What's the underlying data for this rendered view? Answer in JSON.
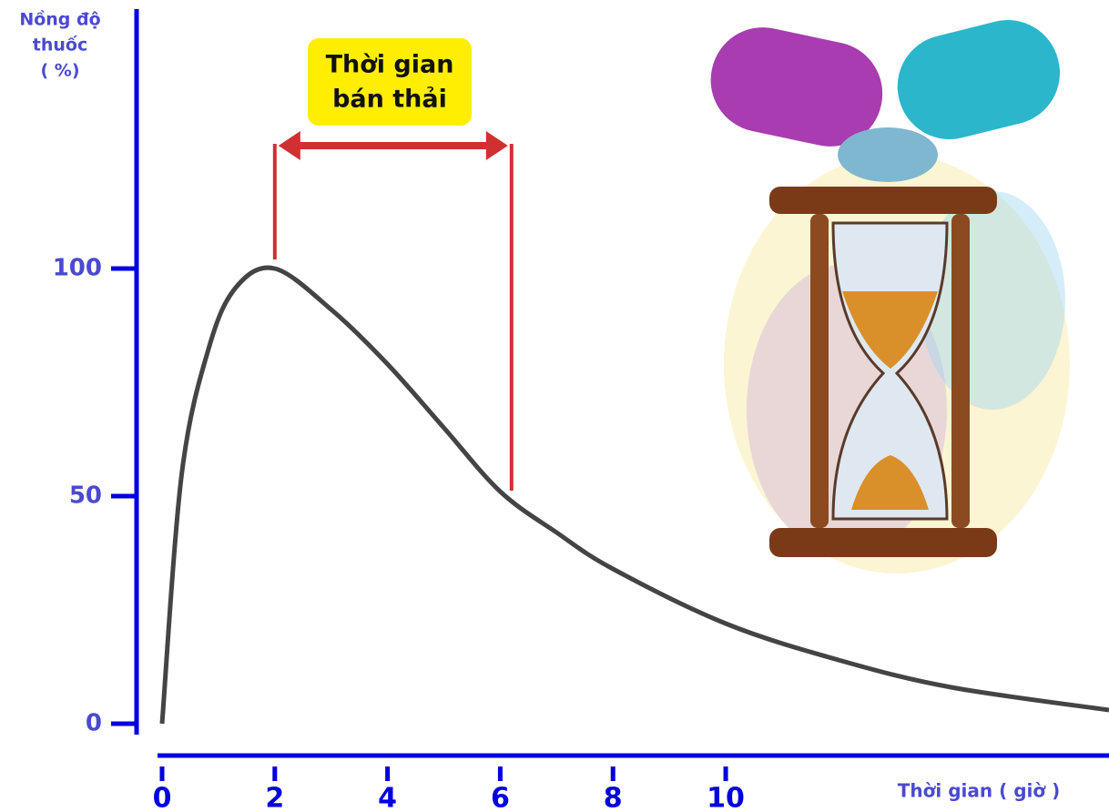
{
  "chart_data": {
    "type": "line",
    "y_label_lines": [
      "Nồng độ",
      "thuốc",
      "( %)"
    ],
    "x_label": "Thời gian ( giờ )",
    "annotation_lines": [
      "Thời gian",
      "bán thải"
    ],
    "half_life": [
      2,
      6.2
    ],
    "x": [
      0,
      0.35,
      0.84,
      1.32,
      2,
      3,
      4,
      5,
      6,
      7,
      8,
      10,
      12,
      14,
      16.8
    ],
    "values": [
      0,
      55,
      83,
      96,
      100,
      91,
      79,
      65,
      51,
      42,
      34,
      22,
      14,
      8,
      3
    ],
    "color": "#444444",
    "axis_color": "#0000e0",
    "xlim": [
      0,
      16.8
    ],
    "xticks": [
      0,
      2,
      4,
      6,
      8,
      10
    ],
    "ylim": [
      0,
      157
    ],
    "yticks": [
      0,
      50,
      100
    ]
  }
}
